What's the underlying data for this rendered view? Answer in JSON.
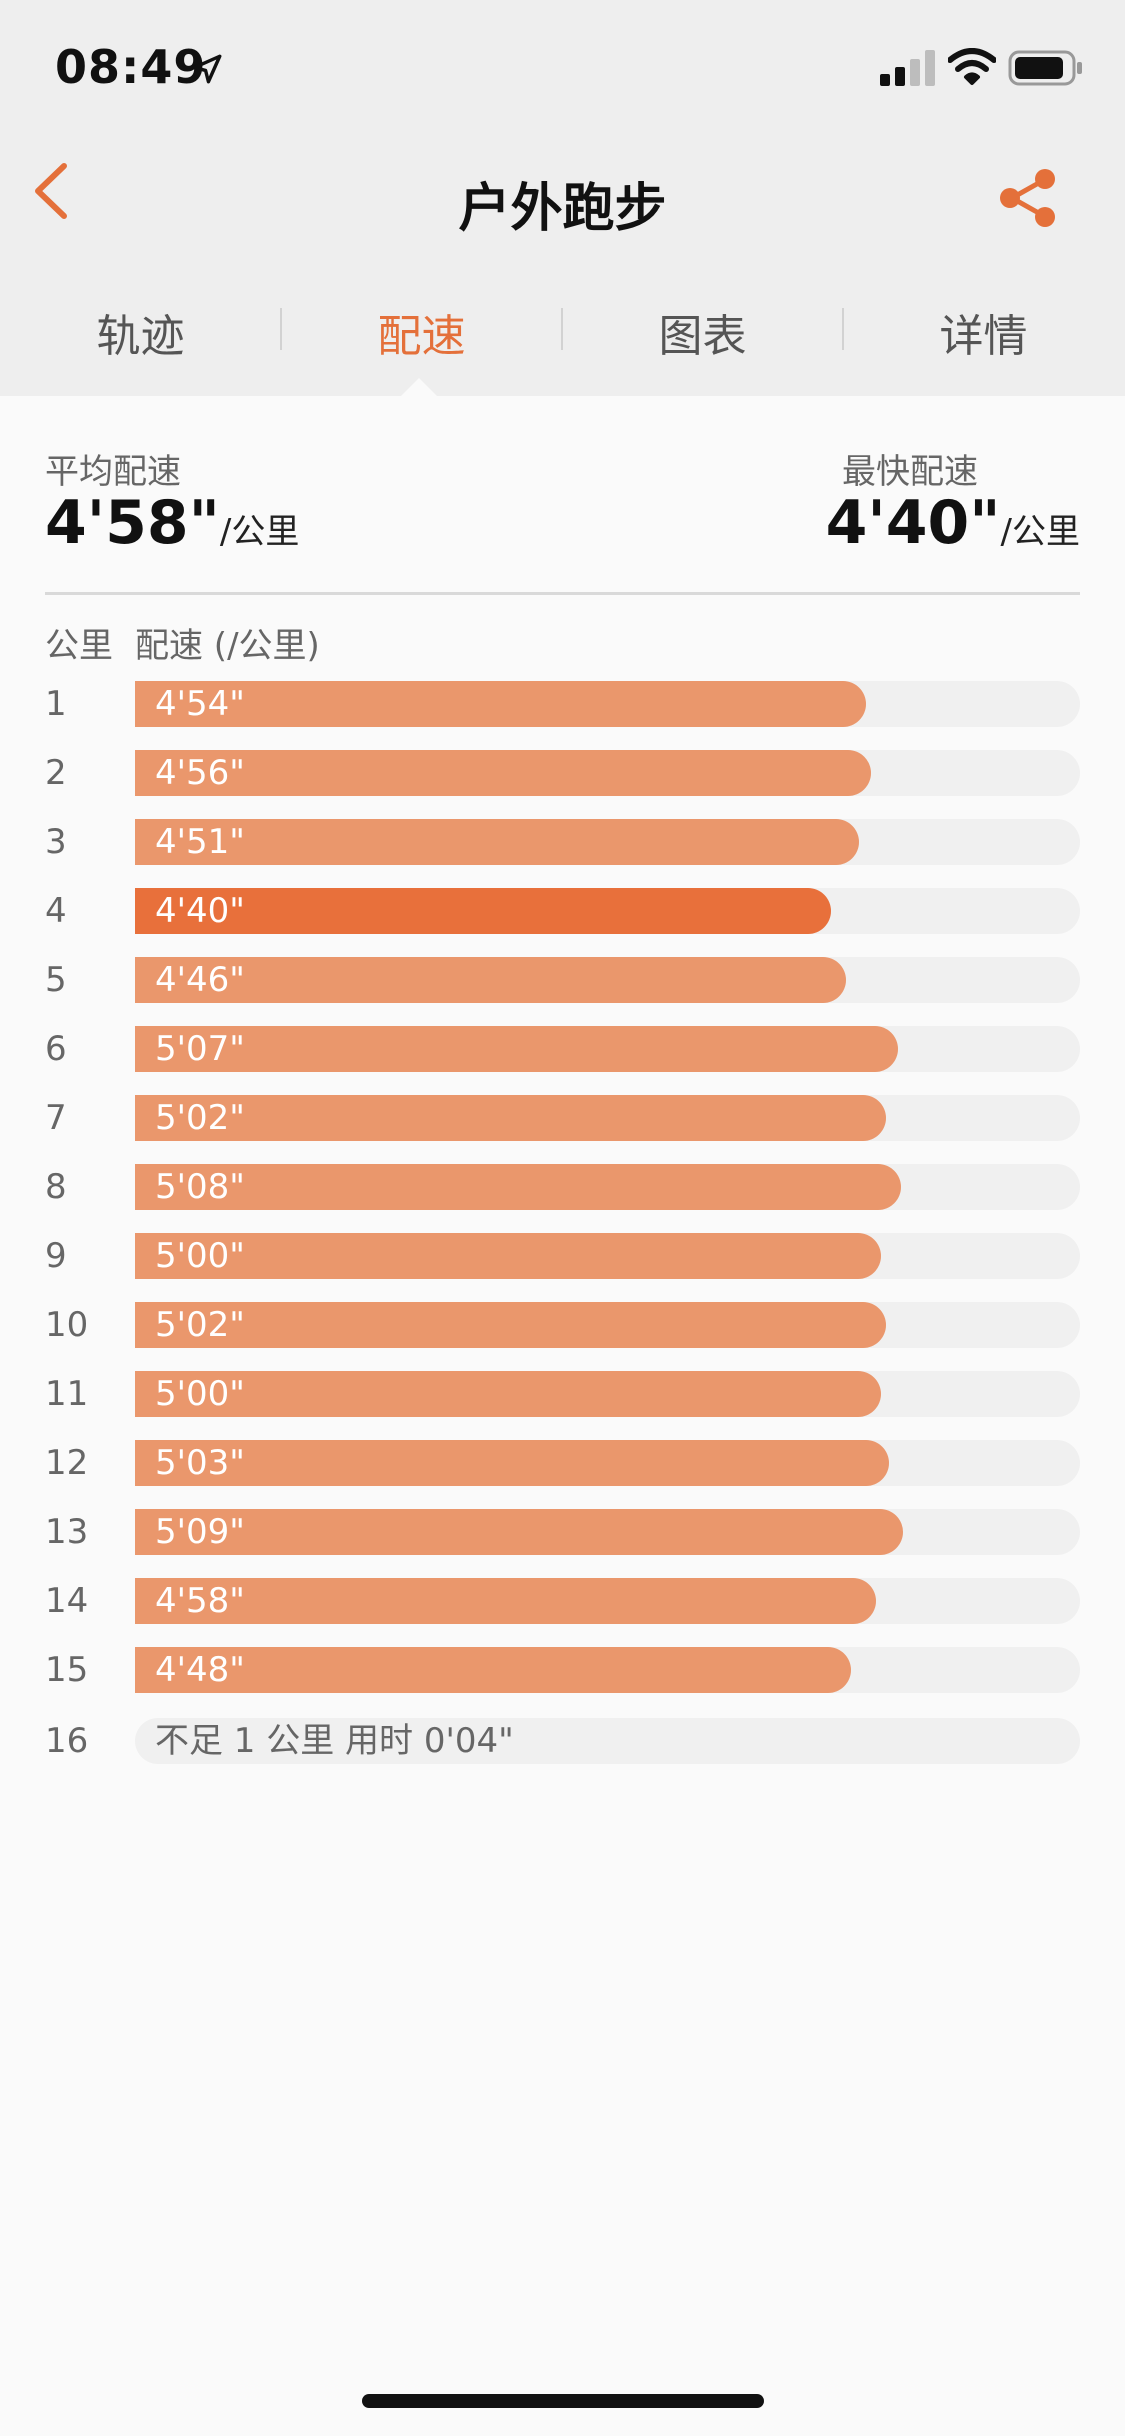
{
  "status_bar": {
    "time": "08:49"
  },
  "nav": {
    "title": "户外跑步"
  },
  "tabs": [
    {
      "label": "轨迹"
    },
    {
      "label": "配速",
      "active": true
    },
    {
      "label": "图表"
    },
    {
      "label": "详情"
    }
  ],
  "summary": {
    "avg_label": "平均配速",
    "avg_value": "4'58\"",
    "fast_label": "最快配速",
    "fast_value": "4'40\"",
    "unit": "/公里"
  },
  "table": {
    "col_km": "公里",
    "col_pace": "配速 (/公里)"
  },
  "splits": [
    {
      "km": "1",
      "pace": "4'54\"",
      "seconds": 294
    },
    {
      "km": "2",
      "pace": "4'56\"",
      "seconds": 296
    },
    {
      "km": "3",
      "pace": "4'51\"",
      "seconds": 291
    },
    {
      "km": "4",
      "pace": "4'40\"",
      "seconds": 280,
      "fastest": true
    },
    {
      "km": "5",
      "pace": "4'46\"",
      "seconds": 286
    },
    {
      "km": "6",
      "pace": "5'07\"",
      "seconds": 307
    },
    {
      "km": "7",
      "pace": "5'02\"",
      "seconds": 302
    },
    {
      "km": "8",
      "pace": "5'08\"",
      "seconds": 308
    },
    {
      "km": "9",
      "pace": "5'00\"",
      "seconds": 300
    },
    {
      "km": "10",
      "pace": "5'02\"",
      "seconds": 302
    },
    {
      "km": "11",
      "pace": "5'00\"",
      "seconds": 300
    },
    {
      "km": "12",
      "pace": "5'03\"",
      "seconds": 303
    },
    {
      "km": "13",
      "pace": "5'09\"",
      "seconds": 309
    },
    {
      "km": "14",
      "pace": "4'58\"",
      "seconds": 298
    },
    {
      "km": "15",
      "pace": "4'48\"",
      "seconds": 288
    }
  ],
  "partial_split": {
    "km": "16",
    "note": "不足 1 公里 用时 0'04\""
  },
  "colors": {
    "accent": "#e4703a",
    "bar": "#ea976c",
    "bar_fastest": "#e8703b",
    "track": "#f0f0f0"
  },
  "icons": {
    "back": "chevron-left-icon",
    "share": "share-icon",
    "location": "location-arrow-icon",
    "signal": "cellular-signal-icon",
    "wifi": "wifi-icon",
    "battery": "battery-icon"
  }
}
